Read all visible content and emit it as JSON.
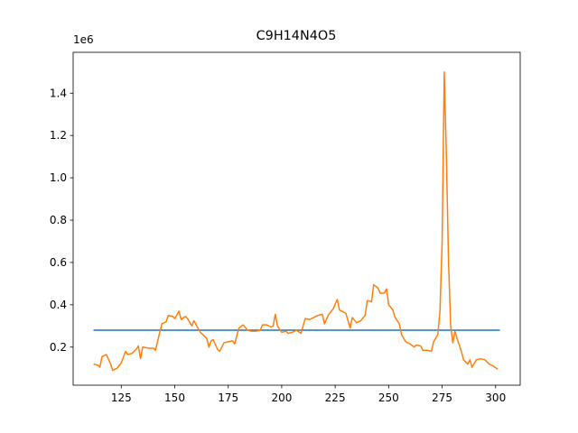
{
  "chart_data": {
    "type": "line",
    "title": "C9H14N4O5",
    "y_offset_label": "1e6",
    "xlim": [
      102.5,
      311.5
    ],
    "xticks": [
      125,
      150,
      175,
      200,
      225,
      250,
      275,
      300
    ],
    "ylim": [
      0.02,
      1.593
    ],
    "yticks": [
      0.2,
      0.4,
      0.6,
      0.8,
      {
        "value": 1,
        "label": "1.0"
      },
      1.2,
      1.4
    ],
    "grid": false,
    "series": [
      {
        "color": "#1f77b4",
        "x": [
          112,
          302
        ],
        "values": [
          0.28,
          0.28
        ]
      },
      {
        "color": "#ff7f0e",
        "x": [
          112,
          114,
          115,
          116,
          118,
          120,
          121,
          123,
          125,
          127,
          128,
          130,
          132,
          133,
          134,
          135,
          138,
          140,
          141,
          143,
          144,
          146,
          147,
          149,
          150,
          152,
          153,
          155,
          156,
          158,
          159,
          160,
          162,
          163,
          165,
          166,
          167,
          168,
          170,
          171,
          173,
          175,
          177,
          178,
          180,
          182,
          184,
          186,
          188,
          190,
          191,
          193,
          195,
          196,
          197,
          198,
          200,
          202,
          203,
          205,
          207,
          209,
          210,
          211,
          213,
          215,
          217,
          219,
          220,
          222,
          224,
          226,
          227,
          229,
          230,
          232,
          233,
          235,
          237,
          239,
          240,
          242,
          243,
          245,
          246,
          248,
          249,
          250,
          252,
          253,
          255,
          256,
          258,
          260,
          262,
          263,
          265,
          266,
          268,
          270,
          271,
          273,
          274,
          275,
          276,
          277,
          278,
          279,
          280,
          281,
          282,
          284,
          285,
          287,
          288,
          289,
          291,
          293,
          295,
          297,
          299,
          301
        ],
        "values": [
          0.12,
          0.115,
          0.105,
          0.155,
          0.165,
          0.12,
          0.09,
          0.1,
          0.125,
          0.18,
          0.165,
          0.17,
          0.19,
          0.205,
          0.145,
          0.2,
          0.195,
          0.195,
          0.185,
          0.27,
          0.31,
          0.32,
          0.35,
          0.345,
          0.335,
          0.37,
          0.33,
          0.345,
          0.335,
          0.3,
          0.325,
          0.305,
          0.27,
          0.26,
          0.24,
          0.2,
          0.23,
          0.235,
          0.19,
          0.18,
          0.22,
          0.225,
          0.23,
          0.215,
          0.29,
          0.305,
          0.28,
          0.275,
          0.275,
          0.28,
          0.305,
          0.305,
          0.295,
          0.3,
          0.355,
          0.3,
          0.27,
          0.275,
          0.265,
          0.27,
          0.28,
          0.265,
          0.3,
          0.335,
          0.33,
          0.34,
          0.35,
          0.355,
          0.31,
          0.355,
          0.38,
          0.425,
          0.375,
          0.365,
          0.36,
          0.29,
          0.34,
          0.315,
          0.325,
          0.35,
          0.42,
          0.415,
          0.495,
          0.48,
          0.455,
          0.455,
          0.475,
          0.4,
          0.375,
          0.34,
          0.31,
          0.26,
          0.225,
          0.215,
          0.2,
          0.21,
          0.205,
          0.185,
          0.185,
          0.18,
          0.225,
          0.26,
          0.37,
          0.7,
          1.5,
          1.1,
          0.6,
          0.3,
          0.22,
          0.275,
          0.24,
          0.18,
          0.14,
          0.12,
          0.14,
          0.105,
          0.14,
          0.145,
          0.14,
          0.12,
          0.11,
          0.095
        ]
      }
    ]
  }
}
